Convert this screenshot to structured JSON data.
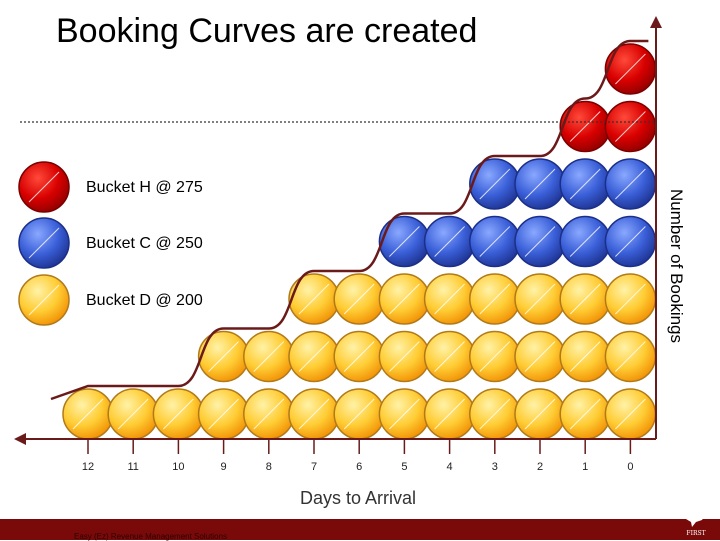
{
  "title": "Booking Curves are created",
  "legend": [
    {
      "label": "Bucket H @ 275",
      "color": "#d80000"
    },
    {
      "label": "Bucket C @ 250",
      "color": "#3a5fd8"
    },
    {
      "label": "Bucket D @ 200",
      "color": "#ffcc33"
    }
  ],
  "colors": {
    "axis": "#6b1a1a",
    "curve": "#6b1a1a",
    "footer": "#7a0a0a"
  },
  "footer": {
    "text": "Easy (Ez) Revenue Management Solutions",
    "logo_text": "FIRST"
  },
  "chart_data": {
    "type": "stacked-circles",
    "xlabel": "Days to Arrival",
    "ylabel": "Number of Bookings",
    "categories": [
      "12",
      "11",
      "10",
      "9",
      "8",
      "7",
      "6",
      "5",
      "4",
      "3",
      "2",
      "1",
      "0"
    ],
    "series": [
      {
        "name": "Bucket D @ 200",
        "values": [
          1,
          1,
          1,
          2,
          2,
          3,
          3,
          3,
          3,
          3,
          3,
          3,
          3
        ]
      },
      {
        "name": "Bucket C @ 250",
        "values": [
          0,
          0,
          0,
          0,
          0,
          0,
          0,
          1,
          1,
          2,
          2,
          2,
          2
        ]
      },
      {
        "name": "Bucket H @ 275",
        "values": [
          0,
          0,
          0,
          0,
          0,
          0,
          0,
          0,
          0,
          0,
          0,
          1,
          2
        ]
      }
    ],
    "capacity_line": "dotted"
  }
}
